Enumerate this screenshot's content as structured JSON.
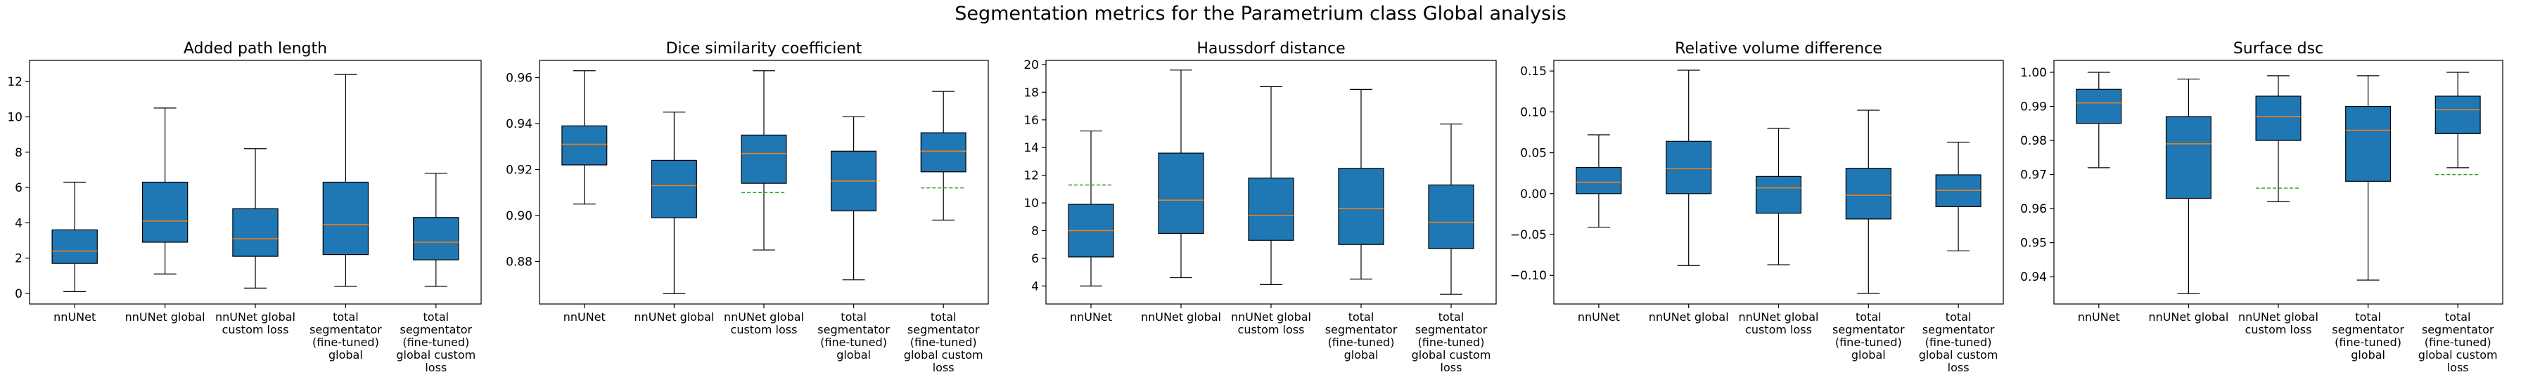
{
  "suptitle": "Segmentation metrics for the Parametrium class Global analysis",
  "colors": {
    "box_fill": "#1f77b4",
    "median_line": "#ff7f0e",
    "mean_line": "#2ca02c",
    "axis": "#000000"
  },
  "chart_data": [
    {
      "type": "boxplot",
      "title": "Added path length",
      "categories": [
        "nnUNet",
        "nnUNet global",
        "nnUNet global\ncustom loss",
        "total\nsegmentator\n(fine-tuned)\nglobal",
        "total\nsegmentator\n(fine-tuned)\nglobal custom\nloss"
      ],
      "ylim": [
        -0.6,
        13.2
      ],
      "yticks": [
        0,
        2,
        4,
        6,
        8,
        10,
        12
      ],
      "tick_labels": [
        "0",
        "2",
        "4",
        "6",
        "8",
        "10",
        "12"
      ],
      "boxes": [
        {
          "whislo": 0.1,
          "q1": 1.7,
          "med": 2.4,
          "q3": 3.6,
          "whishi": 6.3
        },
        {
          "whislo": 1.1,
          "q1": 2.9,
          "med": 4.1,
          "q3": 6.3,
          "whishi": 10.5
        },
        {
          "whislo": 0.3,
          "q1": 2.1,
          "med": 3.1,
          "q3": 4.8,
          "whishi": 8.2
        },
        {
          "whislo": 0.4,
          "q1": 2.2,
          "med": 3.9,
          "q3": 6.3,
          "whishi": 12.4
        },
        {
          "whislo": 0.4,
          "q1": 1.9,
          "med": 2.9,
          "q3": 4.3,
          "whishi": 6.8
        }
      ],
      "means": []
    },
    {
      "type": "boxplot",
      "title": "Dice similarity coefficient",
      "categories": [
        "nnUNet",
        "nnUNet global",
        "nnUNet global\ncustom loss",
        "total\nsegmentator\n(fine-tuned)\nglobal",
        "total\nsegmentator\n(fine-tuned)\nglobal custom\nloss"
      ],
      "ylim": [
        0.8615,
        0.9675
      ],
      "yticks": [
        0.88,
        0.9,
        0.92,
        0.94,
        0.96
      ],
      "tick_labels": [
        "0.88",
        "0.90",
        "0.92",
        "0.94",
        "0.96"
      ],
      "boxes": [
        {
          "whislo": 0.905,
          "q1": 0.922,
          "med": 0.931,
          "q3": 0.939,
          "whishi": 0.963
        },
        {
          "whislo": 0.866,
          "q1": 0.899,
          "med": 0.913,
          "q3": 0.924,
          "whishi": 0.945
        },
        {
          "whislo": 0.885,
          "q1": 0.914,
          "med": 0.927,
          "q3": 0.935,
          "whishi": 0.963
        },
        {
          "whislo": 0.872,
          "q1": 0.902,
          "med": 0.915,
          "q3": 0.928,
          "whishi": 0.943
        },
        {
          "whislo": 0.898,
          "q1": 0.919,
          "med": 0.928,
          "q3": 0.936,
          "whishi": 0.954
        }
      ],
      "means": [
        {
          "index": 2,
          "value": 0.91
        },
        {
          "index": 4,
          "value": 0.912
        }
      ]
    },
    {
      "type": "boxplot",
      "title": "Haussdorf distance",
      "categories": [
        "nnUNet",
        "nnUNet global",
        "nnUNet global\ncustom loss",
        "total\nsegmentator\n(fine-tuned)\nglobal",
        "total\nsegmentator\n(fine-tuned)\nglobal custom\nloss"
      ],
      "ylim": [
        2.7,
        20.3
      ],
      "yticks": [
        4,
        6,
        8,
        10,
        12,
        14,
        16,
        18,
        20
      ],
      "tick_labels": [
        "4",
        "6",
        "8",
        "10",
        "12",
        "14",
        "16",
        "18",
        "20"
      ],
      "boxes": [
        {
          "whislo": 4.0,
          "q1": 6.1,
          "med": 8.0,
          "q3": 9.9,
          "whishi": 15.2
        },
        {
          "whislo": 4.6,
          "q1": 7.8,
          "med": 10.2,
          "q3": 13.6,
          "whishi": 19.6
        },
        {
          "whislo": 4.1,
          "q1": 7.3,
          "med": 9.1,
          "q3": 11.8,
          "whishi": 18.4
        },
        {
          "whislo": 4.5,
          "q1": 7.0,
          "med": 9.6,
          "q3": 12.5,
          "whishi": 18.2
        },
        {
          "whislo": 3.4,
          "q1": 6.7,
          "med": 8.6,
          "q3": 11.3,
          "whishi": 15.7
        }
      ],
      "means": [
        {
          "index": 0,
          "value": 11.3
        }
      ]
    },
    {
      "type": "boxplot",
      "title": "Relative volume difference",
      "categories": [
        "nnUNet",
        "nnUNet global",
        "nnUNet global\ncustom loss",
        "total\nsegmentator\n(fine-tuned)\nglobal",
        "total\nsegmentator\n(fine-tuned)\nglobal custom\nloss"
      ],
      "ylim": [
        -0.135,
        0.163
      ],
      "yticks": [
        -0.1,
        -0.05,
        0.0,
        0.05,
        0.1,
        0.15
      ],
      "tick_labels": [
        "−0.10",
        "−0.05",
        "0.00",
        "0.05",
        "0.10",
        "0.15"
      ],
      "boxes": [
        {
          "whislo": -0.041,
          "q1": 0.0,
          "med": 0.014,
          "q3": 0.032,
          "whishi": 0.072
        },
        {
          "whislo": -0.088,
          "q1": 0.0,
          "med": 0.031,
          "q3": 0.064,
          "whishi": 0.151
        },
        {
          "whislo": -0.087,
          "q1": -0.024,
          "med": 0.007,
          "q3": 0.021,
          "whishi": 0.08
        },
        {
          "whislo": -0.122,
          "q1": -0.031,
          "med": -0.002,
          "q3": 0.031,
          "whishi": 0.102
        },
        {
          "whislo": -0.07,
          "q1": -0.016,
          "med": 0.004,
          "q3": 0.023,
          "whishi": 0.063
        }
      ],
      "means": []
    },
    {
      "type": "boxplot",
      "title": "Surface dsc",
      "categories": [
        "nnUNet",
        "nnUNet global",
        "nnUNet global\ncustom loss",
        "total\nsegmentator\n(fine-tuned)\nglobal",
        "total\nsegmentator\n(fine-tuned)\nglobal custom\nloss"
      ],
      "ylim": [
        0.932,
        1.0035
      ],
      "yticks": [
        0.94,
        0.95,
        0.96,
        0.97,
        0.98,
        0.99,
        1.0
      ],
      "tick_labels": [
        "0.94",
        "0.95",
        "0.96",
        "0.97",
        "0.98",
        "0.99",
        "1.00"
      ],
      "boxes": [
        {
          "whislo": 0.972,
          "q1": 0.985,
          "med": 0.991,
          "q3": 0.995,
          "whishi": 1.0
        },
        {
          "whislo": 0.935,
          "q1": 0.963,
          "med": 0.979,
          "q3": 0.987,
          "whishi": 0.998
        },
        {
          "whislo": 0.962,
          "q1": 0.98,
          "med": 0.987,
          "q3": 0.993,
          "whishi": 0.999
        },
        {
          "whislo": 0.939,
          "q1": 0.968,
          "med": 0.983,
          "q3": 0.99,
          "whishi": 0.999
        },
        {
          "whislo": 0.972,
          "q1": 0.982,
          "med": 0.989,
          "q3": 0.993,
          "whishi": 1.0
        }
      ],
      "means": [
        {
          "index": 2,
          "value": 0.966
        },
        {
          "index": 4,
          "value": 0.97
        }
      ]
    }
  ]
}
